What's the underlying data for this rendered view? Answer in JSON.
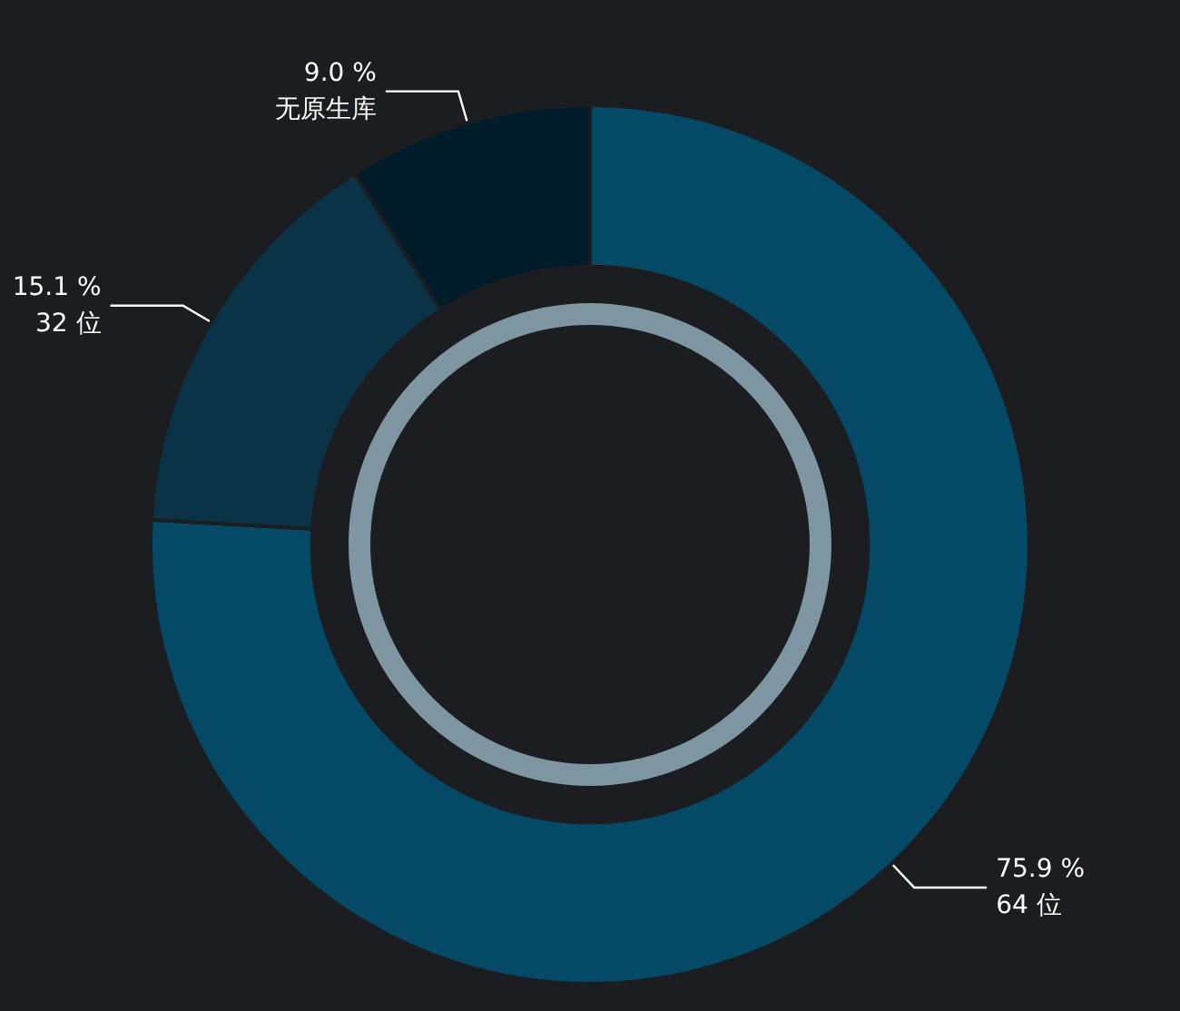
{
  "chart_data": {
    "type": "donut",
    "categories": [
      "64 位",
      "32 位",
      "无原生库"
    ],
    "values": [
      75.9,
      15.1,
      9.0
    ],
    "value_labels": [
      "75.9 %",
      "15.1 %",
      "9.0 %"
    ],
    "colors": [
      "#044a66",
      "#0b3347",
      "#001c2b"
    ],
    "legend": false
  }
}
